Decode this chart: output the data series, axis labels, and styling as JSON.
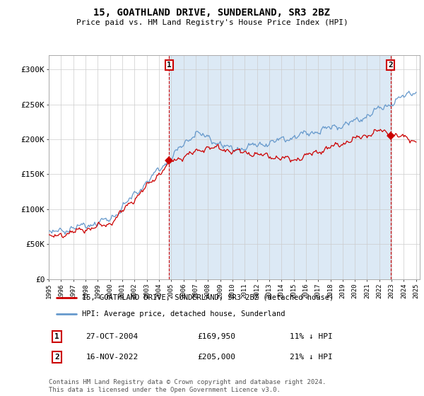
{
  "title": "15, GOATHLAND DRIVE, SUNDERLAND, SR3 2BZ",
  "subtitle": "Price paid vs. HM Land Registry's House Price Index (HPI)",
  "property_label": "15, GOATHLAND DRIVE, SUNDERLAND, SR3 2BZ (detached house)",
  "hpi_label": "HPI: Average price, detached house, Sunderland",
  "transaction1_date": "27-OCT-2004",
  "transaction1_price": "£169,950",
  "transaction1_hpi": "11% ↓ HPI",
  "transaction2_date": "16-NOV-2022",
  "transaction2_price": "£205,000",
  "transaction2_hpi": "21% ↓ HPI",
  "footer": "Contains HM Land Registry data © Crown copyright and database right 2024.\nThis data is licensed under the Open Government Licence v3.0.",
  "red_color": "#cc0000",
  "blue_color": "#6699cc",
  "blue_fill": "#dce9f5",
  "background_color": "#ffffff",
  "grid_color": "#cccccc",
  "ylim": [
    0,
    320000
  ],
  "yticks": [
    0,
    50000,
    100000,
    150000,
    200000,
    250000,
    300000
  ],
  "ytick_labels": [
    "£0",
    "£50K",
    "£100K",
    "£150K",
    "£200K",
    "£250K",
    "£300K"
  ],
  "xstart_year": 1995,
  "xend_year": 2025
}
